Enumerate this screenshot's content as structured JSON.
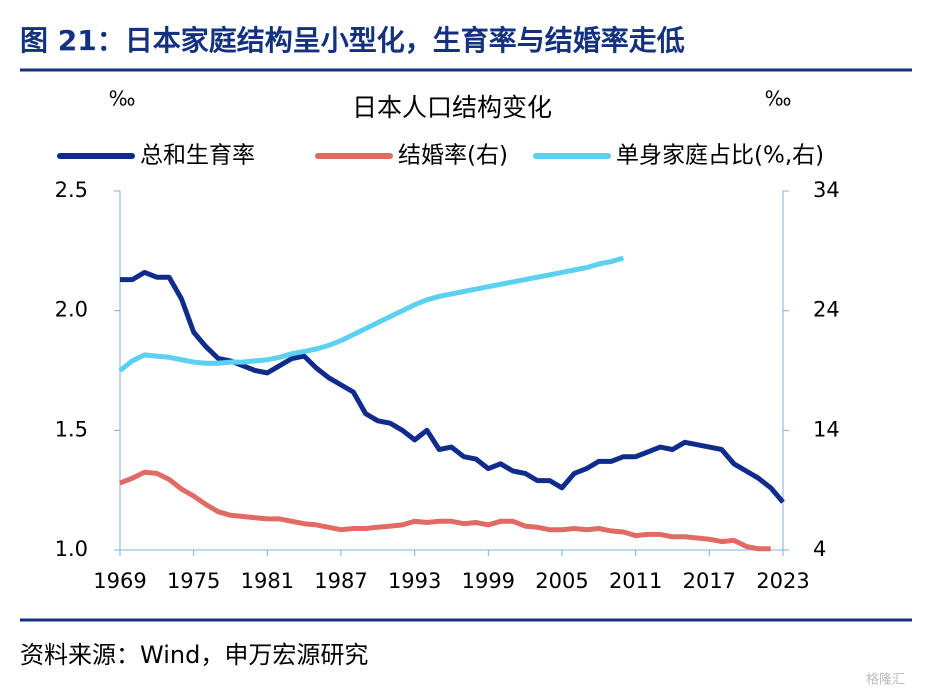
{
  "header": {
    "title": "图 21：日本家庭结构呈小型化，生育率与结婚率走低"
  },
  "chart_data": {
    "type": "line",
    "title": "日本人口结构变化",
    "y_unit": "‰",
    "y2_unit": "‰",
    "x": [
      1969,
      1970,
      1971,
      1972,
      1973,
      1974,
      1975,
      1976,
      1977,
      1978,
      1979,
      1980,
      1981,
      1982,
      1983,
      1984,
      1985,
      1986,
      1987,
      1988,
      1989,
      1990,
      1991,
      1992,
      1993,
      1994,
      1995,
      1996,
      1997,
      1998,
      1999,
      2000,
      2001,
      2002,
      2003,
      2004,
      2005,
      2006,
      2007,
      2008,
      2009,
      2010,
      2011,
      2012,
      2013,
      2014,
      2015,
      2016,
      2017,
      2018,
      2019,
      2020,
      2021,
      2022,
      2023
    ],
    "xlim": [
      1969,
      2023
    ],
    "xticks": [
      1969,
      1975,
      1981,
      1987,
      1993,
      1999,
      2005,
      2011,
      2017,
      2023
    ],
    "ylim": [
      1.0,
      2.5
    ],
    "yticks": [
      {
        "value": 2.5,
        "label": "2.5"
      },
      {
        "value": 2.0,
        "label": "2.0"
      },
      {
        "value": 1.5,
        "label": "1.5"
      },
      {
        "value": 1.0,
        "label": "1.0"
      }
    ],
    "y2lim": [
      4,
      34
    ],
    "y2ticks": [
      34,
      24,
      14,
      4
    ],
    "legend": "top",
    "series": [
      {
        "name": "总和生育率",
        "color": "#0f2c8c",
        "values": [
          2.13,
          2.13,
          2.16,
          2.14,
          2.14,
          2.05,
          1.91,
          1.85,
          1.8,
          1.79,
          1.77,
          1.75,
          1.74,
          1.77,
          1.8,
          1.81,
          1.76,
          1.72,
          1.69,
          1.66,
          1.57,
          1.54,
          1.53,
          1.5,
          1.46,
          1.5,
          1.42,
          1.43,
          1.39,
          1.38,
          1.34,
          1.36,
          1.33,
          1.32,
          1.29,
          1.29,
          1.26,
          1.32,
          1.34,
          1.37,
          1.37,
          1.39,
          1.39,
          1.41,
          1.43,
          1.42,
          1.45,
          1.44,
          1.43,
          1.42,
          1.36,
          1.33,
          1.3,
          1.26,
          1.2
        ]
      },
      {
        "name": "结婚率(右)",
        "color": "#e06b64",
        "axis": "y2",
        "values": [
          9.6,
          10.0,
          10.5,
          10.4,
          9.9,
          9.1,
          8.5,
          7.8,
          7.2,
          6.9,
          6.8,
          6.7,
          6.6,
          6.6,
          6.4,
          6.2,
          6.1,
          5.9,
          5.7,
          5.8,
          5.8,
          5.9,
          6.0,
          6.1,
          6.4,
          6.3,
          6.4,
          6.4,
          6.2,
          6.3,
          6.1,
          6.4,
          6.4,
          6.0,
          5.9,
          5.7,
          5.7,
          5.8,
          5.7,
          5.8,
          5.6,
          5.5,
          5.2,
          5.3,
          5.3,
          5.1,
          5.1,
          5.0,
          4.9,
          4.7,
          4.8,
          4.3,
          4.1,
          4.1,
          null
        ]
      },
      {
        "name": "单身家庭占比(%,右)",
        "color": "#5cd0f0",
        "axis": "y2",
        "values": [
          19.0,
          19.8,
          20.3,
          20.2,
          20.1,
          19.9,
          19.7,
          19.6,
          19.6,
          19.7,
          19.7,
          19.8,
          19.9,
          20.1,
          20.4,
          20.6,
          20.8,
          21.1,
          21.5,
          22.0,
          22.5,
          23.0,
          23.5,
          24.0,
          24.5,
          24.9,
          25.2,
          25.4,
          25.6,
          25.8,
          26.0,
          26.2,
          26.4,
          26.6,
          26.8,
          27.0,
          27.2,
          27.4,
          27.6,
          27.9,
          28.1,
          28.4,
          null,
          null,
          null,
          null,
          null,
          null,
          null,
          null,
          null,
          null,
          null,
          null,
          null
        ]
      }
    ]
  },
  "source": "资料来源：Wind，申万宏源研究",
  "watermark": "格隆汇"
}
